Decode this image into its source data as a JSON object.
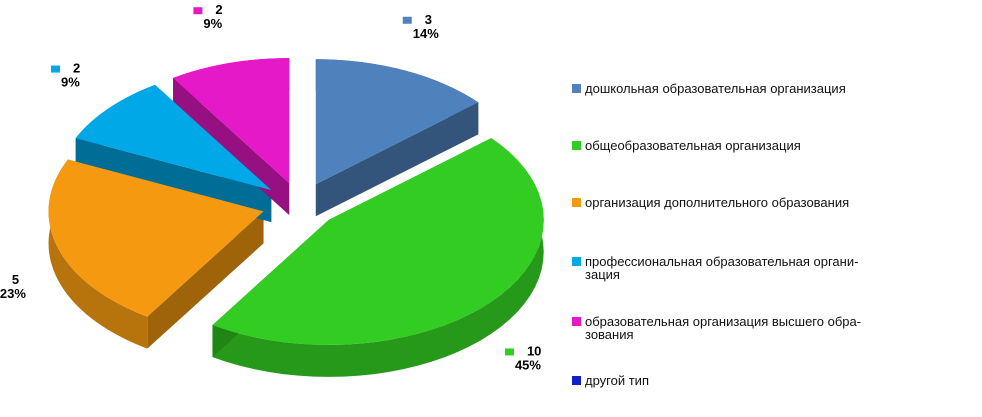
{
  "chart_data": {
    "type": "pie3d",
    "categories": [
      "дошкольная образовательная организация",
      "общеобразовательная организация",
      "организация дополнительного образования",
      "профессиональная образовательная органи-\nзация",
      "образовательная организация высшего обра-\nзования",
      "другой тип"
    ],
    "values": [
      3,
      10,
      5,
      2,
      2,
      0
    ],
    "percentages": [
      "14%",
      "45%",
      "23%",
      "9%",
      "9%",
      null
    ],
    "colors": [
      "#4f81bd",
      "#33cc22",
      "#f59a10",
      "#00a8e8",
      "#e619c8",
      "#1020c8"
    ],
    "legend": "right"
  }
}
